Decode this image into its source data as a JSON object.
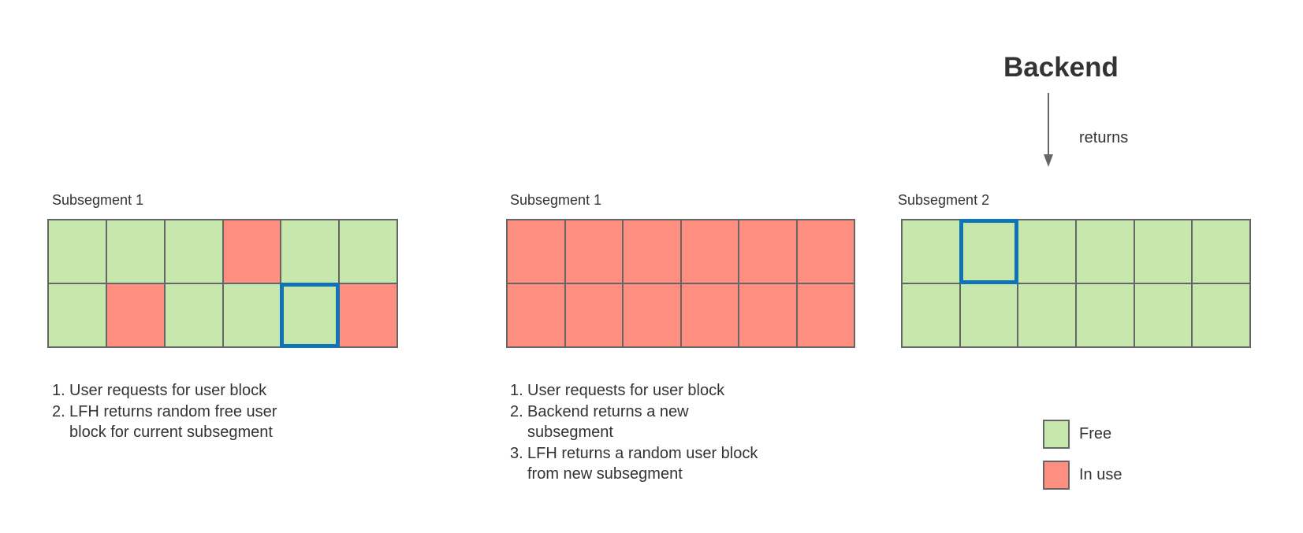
{
  "backend": {
    "title": "Backend",
    "arrow_label": "returns"
  },
  "colors": {
    "free": "#c6e8ad",
    "in_use": "#fe8e80",
    "highlight": "#1172b6",
    "border": "#666666"
  },
  "panels": [
    {
      "title": "Subsegment 1",
      "grid": [
        [
          "free",
          "free",
          "free",
          "used",
          "free",
          "free"
        ],
        [
          "free",
          "used",
          "free",
          "free",
          "free",
          "used"
        ]
      ],
      "selected": [
        1,
        4
      ],
      "steps": [
        {
          "num": "1.",
          "text": "User requests for user block"
        },
        {
          "num": "2.",
          "text": "LFH returns random free user block for current subsegment"
        }
      ]
    },
    {
      "title": "Subsegment 1",
      "grid": [
        [
          "used",
          "used",
          "used",
          "used",
          "used",
          "used"
        ],
        [
          "used",
          "used",
          "used",
          "used",
          "used",
          "used"
        ]
      ],
      "selected": null,
      "steps": [
        {
          "num": "1.",
          "text": "User requests for user block"
        },
        {
          "num": "2.",
          "text": "Backend returns a new subsegment"
        },
        {
          "num": "3.",
          "text": "LFH returns a random user block from new subsegment"
        }
      ]
    },
    {
      "title": "Subsegment 2",
      "grid": [
        [
          "free",
          "free",
          "free",
          "free",
          "free",
          "free"
        ],
        [
          "free",
          "free",
          "free",
          "free",
          "free",
          "free"
        ]
      ],
      "selected": [
        0,
        1
      ],
      "steps": []
    }
  ],
  "legend": [
    {
      "label": "Free",
      "state": "free"
    },
    {
      "label": "In use",
      "state": "used"
    }
  ]
}
